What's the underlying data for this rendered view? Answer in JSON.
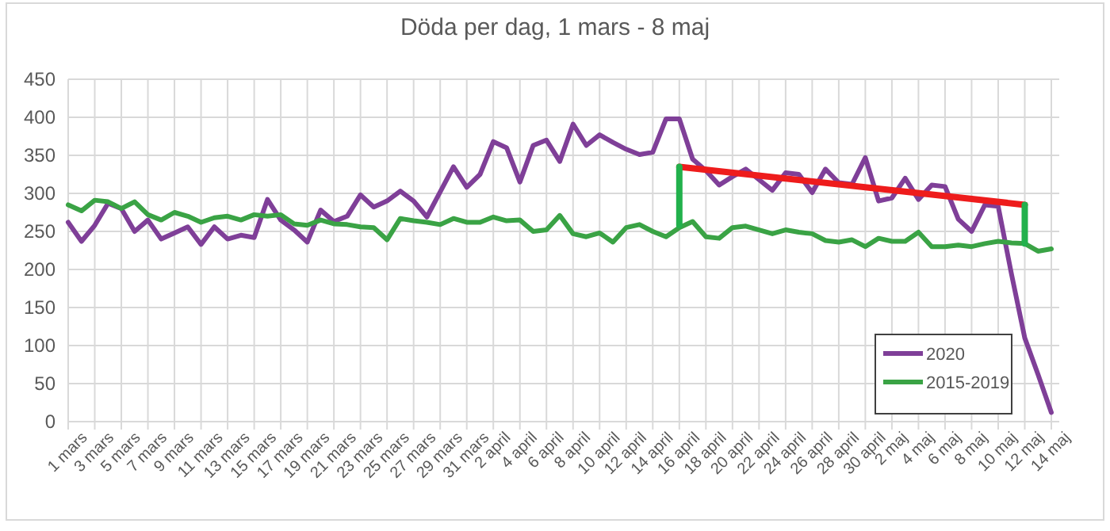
{
  "chart_data": {
    "type": "line",
    "title": "Döda per dag, 1 mars - 8 maj",
    "categories": [
      "1 mars",
      null,
      "3 mars",
      null,
      "5 mars",
      null,
      "7 mars",
      null,
      "9 mars",
      null,
      "11 mars",
      null,
      "13 mars",
      null,
      "15 mars",
      null,
      "17 mars",
      null,
      "19 mars",
      null,
      "21 mars",
      null,
      "23 mars",
      null,
      "25 mars",
      null,
      "27 mars",
      null,
      "29 mars",
      null,
      "31 mars",
      null,
      "2 april",
      null,
      "4 april",
      null,
      "6 april",
      null,
      "8 april",
      null,
      "10 april",
      null,
      "12 april",
      null,
      "14 april",
      null,
      "16 april",
      null,
      "18 april",
      null,
      "20 april",
      null,
      "22 april",
      null,
      "24 april",
      null,
      "26 april",
      null,
      "28 april",
      null,
      "30 april",
      null,
      "2 maj",
      null,
      "4 maj",
      null,
      "6 maj",
      null,
      "8 maj",
      null,
      "10 maj",
      null,
      "12 maj",
      null,
      "14 maj"
    ],
    "series": [
      {
        "name": "2020",
        "color": "#7f3f98",
        "values": [
          262,
          237,
          258,
          287,
          280,
          250,
          265,
          240,
          248,
          256,
          233,
          256,
          240,
          245,
          242,
          292,
          265,
          252,
          236,
          278,
          263,
          270,
          298,
          282,
          290,
          303,
          290,
          269,
          302,
          335,
          308,
          325,
          368,
          360,
          315,
          363,
          370,
          342,
          391,
          363,
          377,
          367,
          358,
          351,
          354,
          398,
          398,
          345,
          330,
          311,
          322,
          332,
          318,
          304,
          327,
          325,
          301,
          332,
          314,
          312,
          347,
          290,
          294,
          320,
          292,
          311,
          309,
          266,
          250,
          285,
          283,
          194,
          110,
          62,
          12
        ]
      },
      {
        "name": "2015-2019",
        "color": "#3aa345",
        "values": [
          285,
          277,
          291,
          289,
          280,
          289,
          272,
          265,
          275,
          270,
          262,
          268,
          270,
          265,
          272,
          270,
          272,
          260,
          258,
          265,
          260,
          259,
          256,
          255,
          239,
          267,
          264,
          262,
          259,
          267,
          262,
          262,
          269,
          264,
          265,
          250,
          252,
          271,
          247,
          243,
          248,
          236,
          255,
          259,
          250,
          243,
          255,
          263,
          243,
          241,
          255,
          257,
          252,
          247,
          252,
          249,
          247,
          238,
          236,
          239,
          230,
          241,
          237,
          237,
          249,
          230,
          230,
          232,
          230,
          234,
          237,
          235,
          234,
          224,
          227
        ]
      },
      {
        "type": "line",
        "color": "#ee1c1c",
        "x": [
          "16 april",
          "12 maj"
        ],
        "values": [
          335,
          285
        ]
      },
      {
        "type": "line",
        "color": "#22b14c",
        "x": [
          "16 april",
          "16 april"
        ],
        "values": [
          258,
          335
        ]
      },
      {
        "type": "line",
        "color": "#22b14c",
        "x": [
          "12 maj",
          "12 maj"
        ],
        "values": [
          234,
          285
        ]
      }
    ],
    "ylim": [
      0,
      450
    ],
    "yticks": [
      0,
      50,
      100,
      150,
      200,
      250,
      300,
      350,
      400,
      450
    ],
    "grid": true,
    "legend": "bottom right",
    "marker": "none",
    "line_style": "solid"
  }
}
